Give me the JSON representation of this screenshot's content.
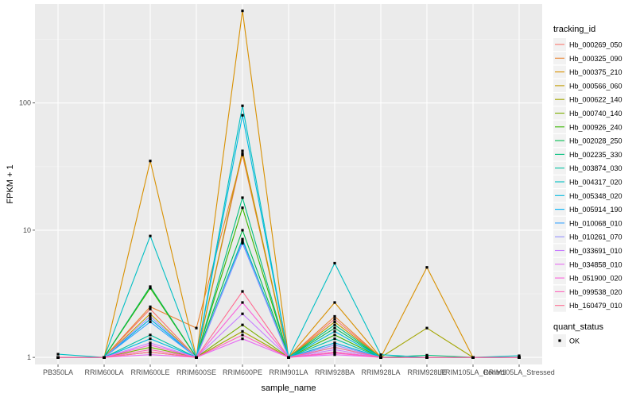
{
  "chart_data": {
    "type": "line",
    "xlabel": "sample_name",
    "ylabel": "FPKM + 1",
    "y_scale": "log10",
    "ylim": [
      0.88,
      600
    ],
    "y_ticks": [
      1,
      10,
      100
    ],
    "y_tick_labels": [
      "1",
      "10",
      "100"
    ],
    "grid": true,
    "legend_position": "right",
    "categories": [
      "PB350LA",
      "RRIM600LA",
      "RRIM600LE",
      "RRIM600SE",
      "RRIM600PE",
      "RRIM901LA",
      "RRIM928BA",
      "RRIM928LA",
      "RRIM928LE",
      "RRIM105LA_Control",
      "RRIM105LA_Stressed"
    ],
    "legend_title": "tracking_id",
    "series": [
      {
        "name": "Hb_000269_050",
        "color": "#F8766D",
        "values": [
          1.0,
          1.0,
          2.4,
          1.0,
          40,
          1.0,
          2.0,
          1.0,
          1.0,
          1.0,
          1.0
        ]
      },
      {
        "name": "Hb_000325_090",
        "color": "#EA8331",
        "values": [
          1.0,
          1.0,
          2.5,
          1.7,
          39,
          1.0,
          2.1,
          1.0,
          1.0,
          1.0,
          1.0
        ]
      },
      {
        "name": "Hb_000375_210",
        "color": "#D89000",
        "values": [
          1.0,
          1.0,
          35,
          1.0,
          530,
          1.0,
          2.7,
          1.0,
          5.1,
          1.0,
          1.0
        ]
      },
      {
        "name": "Hb_000566_060",
        "color": "#C09B00",
        "values": [
          1.0,
          1.0,
          2.2,
          1.0,
          42,
          1.0,
          1.9,
          1.0,
          1.0,
          1.0,
          1.0
        ]
      },
      {
        "name": "Hb_000622_140",
        "color": "#A3A500",
        "values": [
          1.0,
          1.0,
          1.1,
          1.0,
          1.6,
          1.0,
          1.1,
          1.0,
          1.7,
          1.0,
          1.0
        ]
      },
      {
        "name": "Hb_000740_140",
        "color": "#7CAE00",
        "values": [
          1.0,
          1.0,
          1.2,
          1.0,
          1.8,
          1.0,
          1.3,
          1.0,
          1.0,
          1.0,
          1.0
        ]
      },
      {
        "name": "Hb_000926_240",
        "color": "#39B600",
        "values": [
          1.0,
          1.0,
          3.5,
          1.0,
          15,
          1.0,
          1.5,
          1.0,
          1.0,
          1.0,
          1.0
        ]
      },
      {
        "name": "Hb_002028_250",
        "color": "#00BB4E",
        "values": [
          1.0,
          1.0,
          3.6,
          1.0,
          10,
          1.0,
          1.7,
          1.0,
          1.0,
          1.0,
          1.0
        ]
      },
      {
        "name": "Hb_002235_330",
        "color": "#00BF7D",
        "values": [
          1.0,
          1.0,
          2.0,
          1.0,
          18,
          1.0,
          1.8,
          1.0,
          1.04,
          1.0,
          1.0
        ]
      },
      {
        "name": "Hb_003874_030",
        "color": "#00C1A3",
        "values": [
          1.0,
          1.0,
          1.5,
          1.0,
          8.5,
          1.0,
          1.4,
          1.0,
          1.0,
          1.0,
          1.0
        ]
      },
      {
        "name": "Hb_004317_020",
        "color": "#00BFC4",
        "values": [
          1.06,
          1.0,
          9.0,
          1.0,
          95,
          1.0,
          5.5,
          1.05,
          1.0,
          1.0,
          1.03
        ]
      },
      {
        "name": "Hb_005348_020",
        "color": "#00BAE0",
        "values": [
          1.0,
          1.0,
          1.4,
          1.0,
          80,
          1.0,
          1.6,
          1.0,
          1.0,
          1.0,
          1.0
        ]
      },
      {
        "name": "Hb_005914_190",
        "color": "#00B0F6",
        "values": [
          1.0,
          1.0,
          2.0,
          1.0,
          8.2,
          1.0,
          1.3,
          1.0,
          1.0,
          1.0,
          1.0
        ]
      },
      {
        "name": "Hb_010068_010",
        "color": "#35A2FF",
        "values": [
          1.0,
          1.0,
          1.9,
          1.0,
          7.9,
          1.0,
          1.2,
          1.0,
          1.0,
          1.0,
          1.0
        ]
      },
      {
        "name": "Hb_010261_070",
        "color": "#9590FF",
        "values": [
          1.0,
          1.0,
          2.1,
          1.0,
          8.0,
          1.0,
          1.25,
          1.0,
          1.0,
          1.0,
          1.0
        ]
      },
      {
        "name": "Hb_033691_010",
        "color": "#C77CFF",
        "values": [
          1.0,
          1.0,
          1.3,
          1.0,
          2.2,
          1.0,
          1.15,
          1.0,
          1.0,
          1.0,
          1.0
        ]
      },
      {
        "name": "Hb_034858_010",
        "color": "#E76BF3",
        "values": [
          1.0,
          1.0,
          1.05,
          1.0,
          1.4,
          1.0,
          1.05,
          1.0,
          1.0,
          1.0,
          1.0
        ]
      },
      {
        "name": "Hb_051900_020",
        "color": "#FA62DB",
        "values": [
          1.0,
          1.0,
          1.25,
          1.0,
          2.7,
          1.0,
          1.1,
          1.0,
          1.0,
          1.0,
          1.0
        ]
      },
      {
        "name": "Hb_099538_020",
        "color": "#FF62BC",
        "values": [
          1.0,
          1.0,
          1.15,
          1.0,
          1.5,
          1.0,
          1.08,
          1.0,
          1.0,
          1.0,
          1.0
        ]
      },
      {
        "name": "Hb_160479_010",
        "color": "#FF6C91",
        "values": [
          1.0,
          1.0,
          1.1,
          1.0,
          3.3,
          1.0,
          1.2,
          1.0,
          1.0,
          1.0,
          1.0
        ]
      }
    ],
    "shape_legend": {
      "title": "quant_status",
      "items": [
        "OK"
      ]
    }
  }
}
